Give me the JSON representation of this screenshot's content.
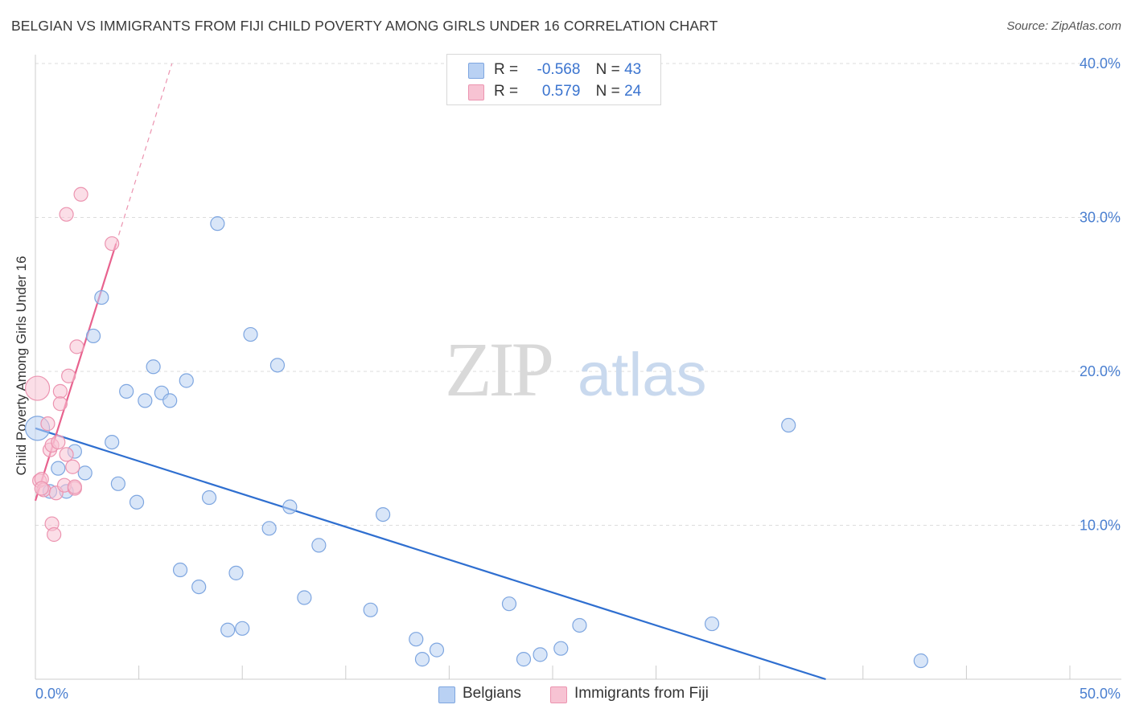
{
  "title": "BELGIAN VS IMMIGRANTS FROM FIJI CHILD POVERTY AMONG GIRLS UNDER 16 CORRELATION CHART",
  "source": "Source: ZipAtlas.com",
  "watermark": {
    "zip": "ZIP",
    "atlas": "atlas"
  },
  "colors": {
    "belgian_fill": "#b9d1f3",
    "belgian_stroke": "#7ea6e0",
    "belgian_line": "#2f6fd0",
    "fiji_fill": "#f7c3d3",
    "fiji_stroke": "#ec94b0",
    "fiji_line": "#e8628e",
    "tick_text": "#4a7fd0",
    "grid": "#dcdcdc"
  },
  "legend": {
    "rows": [
      {
        "r_label": "R =",
        "r_value": "-0.568",
        "n_label": "N =",
        "n_value": "43"
      },
      {
        "r_label": "R =",
        "r_value": " 0.579",
        "n_label": "N =",
        "n_value": "24"
      }
    ]
  },
  "bottom_legend": {
    "belgians": "Belgians",
    "fiji": "Immigrants from Fiji"
  },
  "chart_data": {
    "type": "scatter",
    "title": "BELGIAN VS IMMIGRANTS FROM FIJI CHILD POVERTY AMONG GIRLS UNDER 16 CORRELATION CHART",
    "xlabel": "",
    "ylabel": "Child Poverty Among Girls Under 16",
    "xlim": [
      0,
      50
    ],
    "ylim": [
      0,
      40
    ],
    "x_tick_labels": [
      "0.0%",
      "50.0%"
    ],
    "y_ticks": [
      10,
      20,
      30,
      40
    ],
    "y_tick_labels": [
      "10.0%",
      "20.0%",
      "30.0%",
      "40.0%"
    ],
    "grid": true,
    "series": [
      {
        "name": "Belgians",
        "r": -0.568,
        "n": 43,
        "points": [
          [
            0.1,
            16.3
          ],
          [
            0.7,
            12.2
          ],
          [
            1.1,
            13.7
          ],
          [
            1.5,
            12.2
          ],
          [
            1.9,
            14.8
          ],
          [
            2.4,
            13.4
          ],
          [
            2.8,
            22.3
          ],
          [
            3.2,
            24.8
          ],
          [
            3.7,
            15.4
          ],
          [
            4.0,
            12.7
          ],
          [
            4.4,
            18.7
          ],
          [
            4.9,
            11.5
          ],
          [
            5.3,
            18.1
          ],
          [
            5.7,
            20.3
          ],
          [
            6.1,
            18.6
          ],
          [
            6.5,
            18.1
          ],
          [
            7.0,
            7.1
          ],
          [
            7.3,
            19.4
          ],
          [
            7.9,
            6.0
          ],
          [
            8.4,
            11.8
          ],
          [
            8.8,
            29.6
          ],
          [
            9.3,
            3.2
          ],
          [
            9.7,
            6.9
          ],
          [
            10.0,
            3.3
          ],
          [
            10.4,
            22.4
          ],
          [
            11.3,
            9.8
          ],
          [
            11.7,
            20.4
          ],
          [
            12.3,
            11.2
          ],
          [
            13.0,
            5.3
          ],
          [
            13.7,
            8.7
          ],
          [
            16.2,
            4.5
          ],
          [
            16.8,
            10.7
          ],
          [
            18.4,
            2.6
          ],
          [
            18.7,
            1.3
          ],
          [
            19.4,
            1.9
          ],
          [
            22.9,
            4.9
          ],
          [
            23.6,
            1.3
          ],
          [
            24.4,
            1.6
          ],
          [
            25.4,
            2.0
          ],
          [
            26.3,
            3.5
          ],
          [
            32.7,
            3.6
          ],
          [
            36.4,
            16.5
          ],
          [
            42.8,
            1.2
          ]
        ]
      },
      {
        "name": "Immigrants from Fiji",
        "r": 0.579,
        "n": 24,
        "points": [
          [
            0.1,
            18.9
          ],
          [
            0.2,
            12.9
          ],
          [
            0.3,
            13.0
          ],
          [
            0.4,
            12.3
          ],
          [
            0.6,
            16.6
          ],
          [
            0.7,
            14.9
          ],
          [
            0.8,
            15.2
          ],
          [
            0.8,
            10.1
          ],
          [
            0.9,
            9.4
          ],
          [
            1.0,
            12.1
          ],
          [
            1.1,
            15.4
          ],
          [
            1.2,
            18.7
          ],
          [
            1.2,
            17.9
          ],
          [
            1.4,
            12.6
          ],
          [
            1.5,
            14.6
          ],
          [
            1.5,
            30.2
          ],
          [
            1.6,
            19.7
          ],
          [
            1.8,
            13.8
          ],
          [
            1.9,
            12.4
          ],
          [
            1.9,
            12.5
          ],
          [
            2.0,
            21.6
          ],
          [
            2.2,
            31.5
          ],
          [
            3.7,
            28.3
          ],
          [
            0.3,
            12.4
          ]
        ]
      }
    ],
    "trendlines": [
      {
        "series": "Belgians",
        "x": [
          0,
          38.2
        ],
        "y": [
          16.3,
          0
        ]
      },
      {
        "series": "Immigrants from Fiji",
        "x": [
          0,
          3.9
        ],
        "y": [
          11.6,
          28.3
        ],
        "dashed_extension_to": [
          6.6,
          40.0
        ]
      }
    ]
  }
}
